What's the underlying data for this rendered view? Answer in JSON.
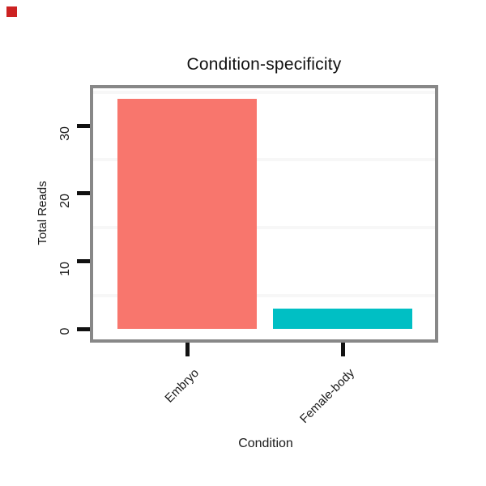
{
  "overlay": {
    "red_square_color": "#cc2222"
  },
  "chart_data": {
    "type": "bar",
    "title": "Condition-specificity",
    "xlabel": "Condition",
    "ylabel": "Total Reads",
    "categories": [
      "Embryo",
      "Female-body"
    ],
    "values": [
      34,
      3
    ],
    "series_colors": [
      "#F8766D",
      "#00BFC4"
    ],
    "ytick_labels": [
      "30",
      "20",
      "10",
      "0"
    ],
    "yticks": [
      30,
      20,
      10,
      0
    ],
    "ylim": [
      0,
      35.5
    ],
    "grid": {
      "minor_at": [
        35,
        25,
        15,
        5
      ],
      "color": "#f7f7f7",
      "major": "off"
    },
    "legend_position": "none",
    "panel_border_color": "#888888",
    "tick_color": "#111111",
    "background": "#ffffff"
  }
}
